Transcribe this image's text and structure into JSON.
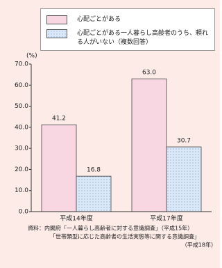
{
  "chart_data": {
    "type": "bar",
    "y_unit": "(%)",
    "categories": [
      "平成14年度",
      "平成17年度"
    ],
    "series": [
      {
        "name": "心配ごとがある",
        "color": "#f9d7e2",
        "values": [
          41.2,
          63.0
        ],
        "value_labels": [
          "41.2",
          "63.0"
        ]
      },
      {
        "name": "心配ごとがある一人暮らし高齢者のうち、頼れる人がいない（複数回答）",
        "color": "#dbe8f7",
        "values": [
          16.8,
          30.7
        ],
        "value_labels": [
          "16.8",
          "30.7"
        ]
      }
    ],
    "ylim": [
      0,
      70
    ],
    "yticks": [
      {
        "value": 0,
        "label": "0.0"
      },
      {
        "value": 10,
        "label": "10.0"
      },
      {
        "value": 20,
        "label": "20.0"
      },
      {
        "value": 30,
        "label": "30.0"
      },
      {
        "value": 40,
        "label": "40.0"
      },
      {
        "value": 50,
        "label": "50.0"
      },
      {
        "value": 60,
        "label": "60.0"
      },
      {
        "value": 70,
        "label": "70.0"
      }
    ],
    "source": [
      "資料：内閣府「一人暮らし高齢者に対する意識調査」（平成15年）",
      "「世帯類型に応じた高齢者の生活実態等に関する意識調査」",
      "（平成18年）"
    ]
  }
}
